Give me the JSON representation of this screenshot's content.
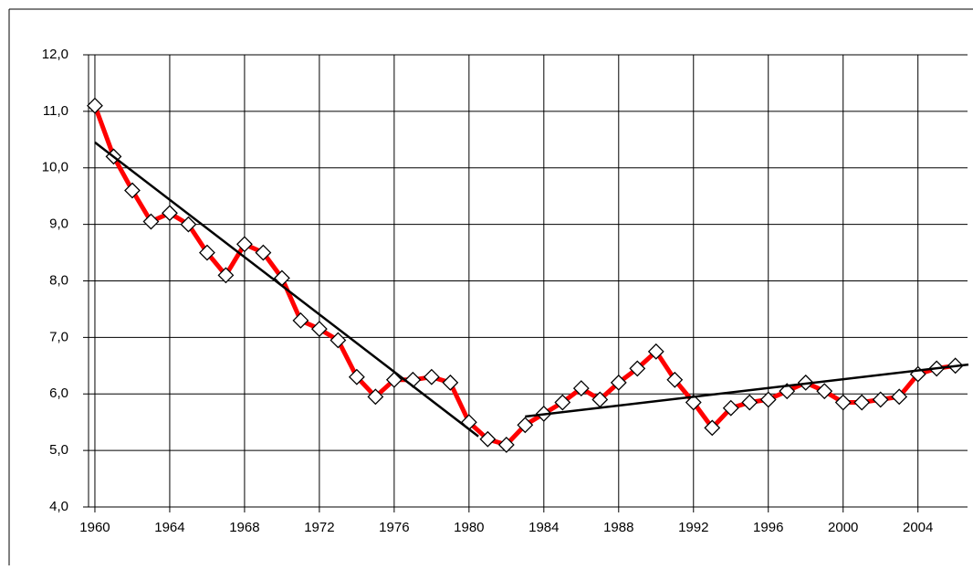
{
  "chart_data": {
    "type": "line",
    "x": [
      1960,
      1961,
      1962,
      1963,
      1964,
      1965,
      1966,
      1967,
      1968,
      1969,
      1970,
      1971,
      1972,
      1973,
      1974,
      1975,
      1976,
      1977,
      1978,
      1979,
      1980,
      1981,
      1982,
      1983,
      1984,
      1985,
      1986,
      1987,
      1988,
      1989,
      1990,
      1991,
      1992,
      1993,
      1994,
      1995,
      1996,
      1997,
      1998,
      1999,
      2000,
      2001,
      2002,
      2003,
      2004,
      2005,
      2006
    ],
    "series": [
      {
        "color": "#ff0000",
        "values": [
          11.1,
          10.2,
          9.6,
          9.05,
          9.2,
          9.0,
          8.5,
          8.1,
          8.65,
          8.5,
          8.05,
          7.3,
          7.15,
          6.95,
          6.3,
          5.95,
          6.25,
          6.25,
          6.3,
          6.2,
          5.5,
          5.2,
          5.1,
          5.45,
          5.65,
          5.85,
          6.1,
          5.9,
          6.2,
          6.45,
          6.75,
          6.25,
          5.85,
          5.4,
          5.75,
          5.85,
          5.9,
          6.05,
          6.2,
          6.05,
          5.85,
          5.85,
          5.9,
          5.95,
          6.35,
          6.45,
          6.5
        ]
      }
    ],
    "trendlines": [
      {
        "color": "#000000",
        "x": [
          1960,
          1980.5
        ],
        "values": [
          10.45,
          5.25
        ]
      },
      {
        "color": "#000000",
        "x": [
          1983,
          2006.7
        ],
        "values": [
          5.6,
          6.52
        ]
      }
    ],
    "xlim": [
      1959.66,
      2006.65
    ],
    "xticks": [
      1960,
      1964,
      1968,
      1972,
      1976,
      1980,
      1984,
      1988,
      1992,
      1996,
      2000,
      2004
    ],
    "ylim": [
      4,
      12
    ],
    "yticks": [
      {
        "value": 4,
        "label": "4,0"
      },
      {
        "value": 5,
        "label": "5,0"
      },
      {
        "value": 6,
        "label": "6,0"
      },
      {
        "value": 7,
        "label": "7,0"
      },
      {
        "value": 8,
        "label": "8,0"
      },
      {
        "value": 9,
        "label": "9,0"
      },
      {
        "value": 10,
        "label": "10,0"
      },
      {
        "value": 11,
        "label": "11,0"
      },
      {
        "value": 12,
        "label": "12,0"
      }
    ],
    "grid": true
  }
}
